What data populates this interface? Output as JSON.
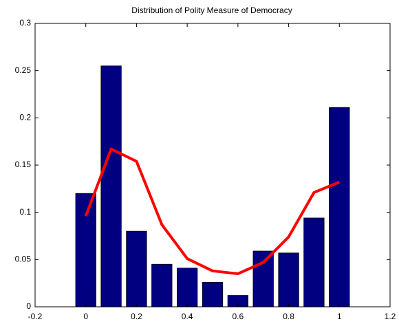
{
  "chart_data": {
    "type": "bar",
    "title": "Distribution of Polity Measure of Democracy",
    "x": [
      0,
      0.1,
      0.2,
      0.3,
      0.4,
      0.5,
      0.6,
      0.7,
      0.8,
      0.9,
      1
    ],
    "series": [
      {
        "type": "bar",
        "color": "#000080",
        "values": [
          0.12,
          0.255,
          0.08,
          0.045,
          0.041,
          0.026,
          0.012,
          0.059,
          0.057,
          0.094,
          0.211
        ]
      },
      {
        "type": "line",
        "color": "#ff0000",
        "values": [
          0.096,
          0.167,
          0.154,
          0.087,
          0.051,
          0.038,
          0.035,
          0.047,
          0.074,
          0.121,
          0.132
        ]
      }
    ],
    "xlim": [
      -0.2,
      1.2
    ],
    "xticks": [
      -0.2,
      0,
      0.2,
      0.4,
      0.6,
      0.8,
      1,
      1.2
    ],
    "ylim": [
      0,
      0.3
    ],
    "yticks": [
      0,
      0.05,
      0.1,
      0.15,
      0.2,
      0.25,
      0.3
    ]
  }
}
